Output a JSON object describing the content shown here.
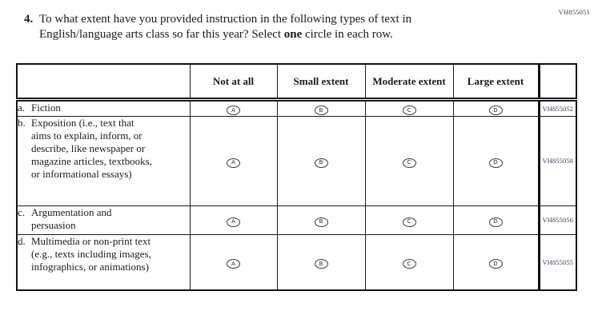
{
  "page": {
    "top_code": "VH855051",
    "question_number": "4.",
    "question_text_before_bold": "To what extent have you provided instruction in the following types of text in English/language arts class so far this year? Select ",
    "question_text_bold": "one",
    "question_text_after_bold": " circle in each row."
  },
  "table": {
    "columns": [
      "Not at all",
      "Small extent",
      "Moderate extent",
      "Large extent"
    ],
    "options": [
      "A",
      "B",
      "C",
      "D"
    ],
    "rows": [
      {
        "letter": "a.",
        "label": "Fiction",
        "code": "VH855052"
      },
      {
        "letter": "b.",
        "label": "Exposition (i.e., text that aims to explain, inform, or describe, like newspaper or magazine articles, textbooks, or informational essays)",
        "code": "VH855058"
      },
      {
        "letter": "c.",
        "label": "Argumentation and persuasion",
        "code": "VH855056"
      },
      {
        "letter": "d.",
        "label": "Multimedia or non-print text (e.g., texts including images, infographics, or animations)",
        "code": "VH855055"
      }
    ]
  },
  "colors": {
    "code_text": "#364257",
    "border": "#1a1a1a",
    "text": "#1b1b1b"
  }
}
